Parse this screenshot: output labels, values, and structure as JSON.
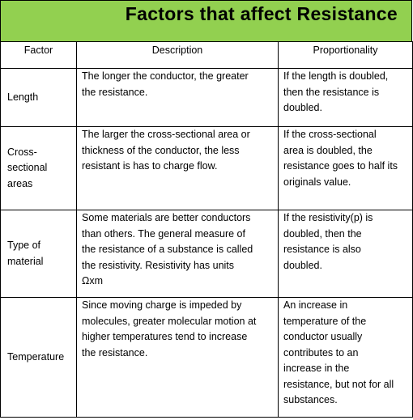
{
  "title": "Factors that affect Resistance",
  "headers": {
    "factor": "Factor",
    "description": "Description",
    "proportionality": "Proportionality"
  },
  "rows": [
    {
      "factor": "Length",
      "description": "The longer the conductor, the greater\nthe resistance.",
      "proportionality": "If the length is doubled,\nthen the resistance is\ndoubled."
    },
    {
      "factor": "Cross-\nsectional\nareas",
      "description": "The larger the cross-sectional area or\nthickness of the conductor, the less\nresistant is has to charge flow.",
      "proportionality": "If the cross-sectional\narea is doubled, the\nresistance goes to half its\noriginals value."
    },
    {
      "factor": "Type of\nmaterial",
      "description": "Some materials are better conductors\nthan others. The general measure of\nthe resistance of a substance is called\nthe resistivity. Resistivity has units\nΩxm",
      "proportionality": "If the resistivity(p) is\ndoubled, then the\nresistance is also\ndoubled."
    },
    {
      "factor": "Temperature",
      "description": "Since moving charge is impeded by\nmolecules, greater molecular motion at\nhigher temperatures tend to increase\nthe resistance.",
      "proportionality": "An increase in\ntemperature of the\nconductor usually\ncontributes to an\nincrease in the\nresistance, but not for all\nsubstances."
    }
  ],
  "colors": {
    "title_background": "#92d050",
    "border": "#000000"
  }
}
